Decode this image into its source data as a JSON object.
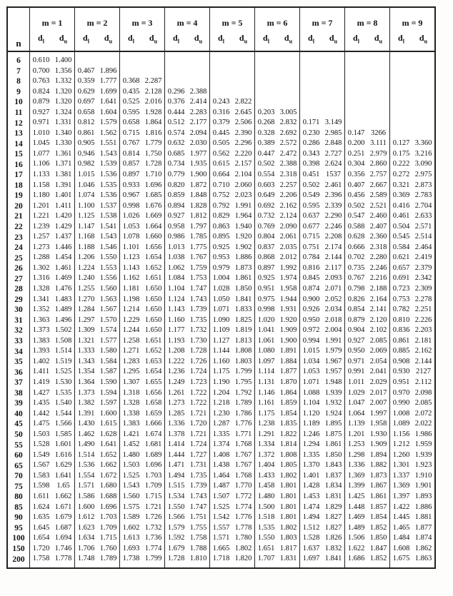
{
  "header": {
    "n_label": "n",
    "d_label": "d",
    "sub_l": "l",
    "sub_u": "u",
    "groups": [
      "m = 1",
      "m = 2",
      "m = 3",
      "m = 4",
      "m = 5",
      "m = 6",
      "m = 7",
      "m = 8",
      "m = 9"
    ]
  },
  "chart_data": {
    "type": "table",
    "title": "Durbin-Watson critical values (d_l and d_u) by sample size n and number of regressors m",
    "columns": [
      "n",
      "m=1 dl",
      "m=1 du",
      "m=2 dl",
      "m=2 du",
      "m=3 dl",
      "m=3 du",
      "m=4 dl",
      "m=4 du",
      "m=5 dl",
      "m=5 du",
      "m=6 dl",
      "m=6 du",
      "m=7 dl",
      "m=7 du",
      "m=8 dl",
      "m=8 du",
      "m=9 dl",
      "m=9 du"
    ]
  },
  "table": {
    "rows": [
      {
        "n": "6",
        "values": [
          "0.610",
          "1.400"
        ]
      },
      {
        "n": "7",
        "values": [
          "0.700",
          "1.356",
          "0.467",
          "1.896"
        ]
      },
      {
        "n": "8",
        "values": [
          "0.763",
          "1.332",
          "0.359",
          "1.777",
          "0.368",
          "2.287"
        ]
      },
      {
        "n": "9",
        "values": [
          "0.824",
          "1.320",
          "0.629",
          "1.699",
          "0.435",
          "2.128",
          "0.296",
          "2.388"
        ]
      },
      {
        "n": "10",
        "values": [
          "0.879",
          "1.320",
          "0.697",
          "1.641",
          "0.525",
          "2.016",
          "0.376",
          "2.414",
          "0.243",
          "2.822"
        ]
      },
      {
        "n": "11",
        "values": [
          "0.927",
          "1.324",
          "0.658",
          "1.604",
          "0.595",
          "1.928",
          "0.444",
          "2.283",
          "0.316",
          "2.645",
          "0.203",
          "3.005"
        ]
      },
      {
        "n": "12",
        "values": [
          "0.971",
          "1.331",
          "0.812",
          "1.579",
          "0.658",
          "1.864",
          "0.512",
          "2.177",
          "0.379",
          "2.506",
          "0.268",
          "2.832",
          "0.171",
          "3.149"
        ]
      },
      {
        "n": "13",
        "values": [
          "1.010",
          "1.340",
          "0.861",
          "1.562",
          "0.715",
          "1.816",
          "0.574",
          "2.094",
          "0.445",
          "2.390",
          "0.328",
          "2.692",
          "0.230",
          "2.985",
          "0.147",
          "3266"
        ]
      },
      {
        "n": "14",
        "values": [
          "1.045",
          "1.330",
          "0.905",
          "1.551",
          "0.767",
          "1.779",
          "0.632",
          "2.030",
          "0.505",
          "2.296",
          "0.389",
          "2.572",
          "0.286",
          "2.848",
          "0.200",
          "3.111",
          "0.127",
          "3.360"
        ]
      },
      {
        "n": "15",
        "values": [
          "1.077",
          "1.361",
          "0.946",
          "1.543",
          "0.814",
          "1.750",
          "0.685",
          "1.977",
          "0.562",
          "2.220",
          "0.447",
          "2.472",
          "0.343",
          "2.727",
          "0.251",
          "2.979",
          "0.175",
          "3.216"
        ]
      },
      {
        "n": "16",
        "values": [
          "1.106",
          "1.371",
          "0.982",
          "1.539",
          "0.857",
          "1.728",
          "0.734",
          "1.935",
          "0.615",
          "2.157",
          "0.502",
          "2.388",
          "0.398",
          "2.624",
          "0.304",
          "2.860",
          "0.222",
          "3.090"
        ]
      },
      {
        "n": "17",
        "values": [
          "1.133",
          "1.381",
          "1.015",
          "1.536",
          "0.897",
          "1.710",
          "0.779",
          "1.900",
          "0.664",
          "2.104",
          "0.554",
          "2.318",
          "0.451",
          "1537",
          "0.356",
          "2.757",
          "0.272",
          "2.975"
        ]
      },
      {
        "n": "18",
        "values": [
          "1.158",
          "1.391",
          "1.046",
          "1.535",
          "0.933",
          "1.696",
          "0.820",
          "1.872",
          "0.710",
          "2.060",
          "0.603",
          "2.257",
          "0.502",
          "2.461",
          "0.407",
          "2.667",
          "0.321",
          "2.873"
        ]
      },
      {
        "n": "19",
        "values": [
          "1.180",
          "1.401",
          "1.074",
          "1.536",
          "0.967",
          "1.685",
          "0.859",
          "1.848",
          "0.752",
          "2.023",
          "0.649",
          "2.206",
          "0.549",
          "2.396",
          "0.456",
          "2.589",
          "0.369",
          "2.783"
        ]
      },
      {
        "n": "20",
        "values": [
          "1.201",
          "1.411",
          "1.100",
          "1.537",
          "0.998",
          "1.676",
          "0.894",
          "1.828",
          "0.792",
          "1.991",
          "0.692",
          "2.162",
          "0.595",
          "2.339",
          "0.502",
          "2.521",
          "0.416",
          "2.704"
        ]
      },
      {
        "n": "21",
        "values": [
          "1.221",
          "1.420",
          "1.125",
          "1.538",
          "1.026",
          "1.669",
          "0.927",
          "1.812",
          "0.829",
          "1.964",
          "0.732",
          "2.124",
          "0.637",
          "2.290",
          "0.547",
          "2.460",
          "0.461",
          "2.633"
        ]
      },
      {
        "n": "22",
        "values": [
          "1.239",
          "1.429",
          "1.147",
          "1.541",
          "1.053",
          "1.664",
          "0.958",
          "1.797",
          "0.863",
          "1.940",
          "0.769",
          "2.090",
          "0.677",
          "2.246",
          "0.588",
          "2.407",
          "0.504",
          "2.571"
        ]
      },
      {
        "n": "23",
        "values": [
          "1.257",
          "1.437",
          "1.168",
          "1.543",
          "1.078",
          "1.660",
          "0.986",
          "1.785",
          "0.895",
          "1.920",
          "0.804",
          "2.061",
          "0.715",
          "2.208",
          "0.628",
          "2.360",
          "0.545",
          "2.514"
        ]
      },
      {
        "n": "24",
        "values": [
          "1.273",
          "1.446",
          "1.188",
          "1.546",
          "1.101",
          "1.656",
          "1.013",
          "1.775",
          "0.925",
          "1.902",
          "0.837",
          "2.035",
          "0.751",
          "2.174",
          "0.666",
          "2.318",
          "0.584",
          "2.464"
        ]
      },
      {
        "n": "25",
        "values": [
          "1.288",
          "1.454",
          "1.206",
          "1.550",
          "1.123",
          "1.654",
          "1.038",
          "1.767",
          "0.953",
          "1.886",
          "0.868",
          "2.012",
          "0.784",
          "2.144",
          "0.702",
          "2.280",
          "0.621",
          "2.419"
        ]
      },
      {
        "n": "26",
        "values": [
          "1.302",
          "1.461",
          "1.224",
          "1.553",
          "1.143",
          "1.652",
          "1.062",
          "1.759",
          "0.979",
          "1.873",
          "0.897",
          "1.992",
          "0.816",
          "2.117",
          "0.735",
          "2.246",
          "0.657",
          "2.379"
        ]
      },
      {
        "n": "27",
        "values": [
          "1.316",
          "1.469",
          "1.240",
          "1.556",
          "1.162",
          "1.651",
          "1.084",
          "1.753",
          "1.004",
          "1.861",
          "0.925",
          "1.974",
          "0.845",
          "2.093",
          "0.767",
          "2.216",
          "0.691",
          "2.342"
        ]
      },
      {
        "n": "28",
        "values": [
          "1.328",
          "1.476",
          "1.255",
          "1.560",
          "1.181",
          "1.650",
          "1.104",
          "1.747",
          "1.028",
          "1.850",
          "0.951",
          "1.958",
          "0.874",
          "2.071",
          "0.798",
          "2.188",
          "0.723",
          "2.309"
        ]
      },
      {
        "n": "29",
        "values": [
          "1.341",
          "1.483",
          "1.270",
          "1.563",
          "1.198",
          "1.650",
          "1.124",
          "1.743",
          "1.050",
          "1.841",
          "0.975",
          "1.944",
          "0.900",
          "2.052",
          "0.826",
          "2.164",
          "0.753",
          "2.278"
        ]
      },
      {
        "n": "30",
        "values": [
          "1.352",
          "1.489",
          "1.284",
          "1.567",
          "1.214",
          "1.650",
          "1.143",
          "1.739",
          "1.071",
          "1.833",
          "0.998",
          "1.931",
          "0.926",
          "2.034",
          "0.854",
          "2.141",
          "0.782",
          "2.251"
        ]
      },
      {
        "n": "31",
        "values": [
          "1.363",
          "1.496",
          "1.297",
          "1.570",
          "1.229",
          "1.650",
          "1.160",
          "1.735",
          "1.090",
          "1.825",
          "1.020",
          "1.920",
          "0.950",
          "2.018",
          "0.879",
          "2.120",
          "0.810",
          "2.226"
        ]
      },
      {
        "n": "32",
        "values": [
          "1.373",
          "1.502",
          "1.309",
          "1.574",
          "1.244",
          "1.650",
          "1.177",
          "1.732",
          "1.109",
          "1.819",
          "1.041",
          "1.909",
          "0.972",
          "2.004",
          "0.904",
          "2.102",
          "0.836",
          "2.203"
        ]
      },
      {
        "n": "33",
        "values": [
          "1.383",
          "1.508",
          "1.321",
          "1.577",
          "1.258",
          "1.651",
          "1.193",
          "1.730",
          "1.127",
          "1.813",
          "1.061",
          "1.900",
          "0.994",
          "1.991",
          "0.927",
          "2.085",
          "0.861",
          "2.181"
        ]
      },
      {
        "n": "34",
        "values": [
          "1.393",
          "1.514",
          "1.333",
          "1.580",
          "1.271",
          "1.652",
          "1.208",
          "1.728",
          "1.144",
          "1.808",
          "1.080",
          "1.891",
          "1.015",
          "1.979",
          "0.950",
          "2.069",
          "0.885",
          "2.162"
        ]
      },
      {
        "n": "35",
        "values": [
          "1.402",
          "1.519",
          "1.343",
          "1.584",
          "1.283",
          "1.653",
          "1.222",
          "1.726",
          "1.160",
          "1.803",
          "1.097",
          "1.884",
          "1.034",
          "1.967",
          "0.971",
          "2.054",
          "0.908",
          "2.144"
        ]
      },
      {
        "n": "36",
        "values": [
          "1.411",
          "1.525",
          "1.354",
          "1.587",
          "1.295",
          "1.654",
          "1.236",
          "1.724",
          "1.175",
          "1.799",
          "1.114",
          "1.877",
          "1.053",
          "1.957",
          "0.991",
          "2.041",
          "0.930",
          "2127"
        ]
      },
      {
        "n": "37",
        "values": [
          "1.419",
          "1.530",
          "1.364",
          "1.590",
          "1.307",
          "1.655",
          "1.249",
          "1.723",
          "1.190",
          "1.795",
          "1.131",
          "1.870",
          "1.071",
          "1.948",
          "1.011",
          "2.029",
          "0.951",
          "2.112"
        ]
      },
      {
        "n": "38",
        "values": [
          "1.427",
          "1.535",
          "1.373",
          "1.594",
          "1.318",
          "1.656",
          "1.261",
          "1.722",
          "1.204",
          "1.792",
          "1.146",
          "1.864",
          "1.088",
          "1.939",
          "1.029",
          "2.017",
          "0.970",
          "2.098"
        ]
      },
      {
        "n": "39",
        "values": [
          "1.435",
          "1.540",
          "1.382",
          "1.597",
          "1.328",
          "1.658",
          "1.273",
          "1.722",
          "1.218",
          "1.789",
          "1.161",
          "1.859",
          "1.104",
          "1.932",
          "1.047",
          "2.007",
          "0.990",
          "2.085"
        ]
      },
      {
        "n": "40",
        "values": [
          "1.442",
          "1.544",
          "1.391",
          "1.600",
          "1.338",
          "1.659",
          "1.285",
          "1.721",
          "1.230",
          "1.786",
          "1.175",
          "1.854",
          "1.120",
          "1.924",
          "1.064",
          "1.997",
          "1.008",
          "2.072"
        ]
      },
      {
        "n": "45",
        "values": [
          "1.475",
          "1.566",
          "1.430",
          "1.615",
          "1.383",
          "1.666",
          "1.336",
          "1.720",
          "1.287",
          "1.776",
          "1.238",
          "1.835",
          "1.189",
          "1.895",
          "1.139",
          "1.958",
          "1.089",
          "2.022"
        ]
      },
      {
        "n": "50",
        "values": [
          "1.503",
          "1.585",
          "1.462",
          "1.628",
          "1.421",
          "1.674",
          "1.378",
          "1.721",
          "1.335",
          "1.771",
          "1.291",
          "1.822",
          "1.246",
          "1.875",
          "1.201",
          "1.930",
          "1.156",
          "1.986"
        ]
      },
      {
        "n": "55",
        "values": [
          "1.528",
          "1.601",
          "1.490",
          "1.641",
          "1.452",
          "1.681",
          "1.414",
          "1.724",
          "1.374",
          "1.768",
          "1.334",
          "1.814",
          "1.294",
          "1.861",
          "1.253",
          "1.909",
          "1.212",
          "1.959"
        ]
      },
      {
        "n": "60",
        "values": [
          "1.549",
          "1.616",
          "1.514",
          "1.652",
          "1.480",
          "1.689",
          "1.444",
          "1.727",
          "1.408",
          "1.767",
          "1.372",
          "1.808",
          "1.335",
          "1.850",
          "1.298",
          "1.894",
          "1.260",
          "1.939"
        ]
      },
      {
        "n": "65",
        "values": [
          "1.567",
          "1.629",
          "1.536",
          "1.662",
          "1.503",
          "1.696",
          "1.471",
          "1.731",
          "1.438",
          "1.767",
          "1.404",
          "1.805",
          "1.370",
          "1.843",
          "1.336",
          "1.882",
          "1.301",
          "1.923"
        ]
      },
      {
        "n": "70",
        "values": [
          "1.583",
          "1.641",
          "1.554",
          "1.672",
          "1.525",
          "1.703",
          "1.494",
          "1.735",
          "1.464",
          "1.768",
          "1.433",
          "1.802",
          "1.401",
          "1.837",
          "1.369",
          "1.873",
          "1.337",
          "1.910"
        ]
      },
      {
        "n": "75",
        "values": [
          "1.598",
          "1.65",
          "1.571",
          "1.680",
          "1.543",
          "1.709",
          "1.515",
          "1.739",
          "1.487",
          "1.770",
          "1.458",
          "1.801",
          "1.428",
          "1.834",
          "1.399",
          "1.867",
          "1.369",
          "1.901"
        ]
      },
      {
        "n": "80",
        "values": [
          "1.611",
          "1.662",
          "1.586",
          "1.688",
          "1.560",
          "1.715",
          "1.534",
          "1.743",
          "1.507",
          "1.772",
          "1.480",
          "1.801",
          "1.453",
          "1.831",
          "1.425",
          "1.861",
          "1.397",
          "1.893"
        ]
      },
      {
        "n": "85",
        "values": [
          "1.624",
          "1.671",
          "1.600",
          "1.696",
          "1.575",
          "1.721",
          "1.550",
          "1.747",
          "1.525",
          "1.774",
          "1.500",
          "1.801",
          "1.474",
          "1.829",
          "1.448",
          "1.857",
          "1.422",
          "1.886"
        ]
      },
      {
        "n": "90",
        "values": [
          "1.635",
          "1.679",
          "1.612",
          "1.703",
          "1.589",
          "1.726",
          "1.566",
          "1.751",
          "1.542",
          "1.776",
          "1.518",
          "1.801",
          "1.494",
          "1.827",
          "1.469",
          "1.854",
          "1.445",
          "1.881"
        ]
      },
      {
        "n": "95",
        "values": [
          "1.645",
          "1.687",
          "1.623",
          "1.709",
          "1.602",
          "1.732",
          "1.579",
          "1.755",
          "1.557",
          "1.778",
          "1.535",
          "1.802",
          "1.512",
          "1.827",
          "1.489",
          "1.852",
          "1.465",
          "1.877"
        ]
      },
      {
        "n": "100",
        "values": [
          "1.654",
          "1.694",
          "1.634",
          "1.715",
          "1.613",
          "1.736",
          "1.592",
          "1.758",
          "1.571",
          "1.780",
          "1.550",
          "1.803",
          "1.528",
          "1.826",
          "1.506",
          "1.850",
          "1.484",
          "1.874"
        ]
      },
      {
        "n": "150",
        "values": [
          "1.720",
          "1.746",
          "1.706",
          "1.760",
          "1.693",
          "1.774",
          "1.679",
          "1.788",
          "1.665",
          "1.802",
          "1.651",
          "1.817",
          "1.637",
          "1.832",
          "1.622",
          "1.847",
          "1.608",
          "1.862"
        ]
      },
      {
        "n": "200",
        "values": [
          "1.758",
          "1.778",
          "1.748",
          "1.789",
          "1.738",
          "1.799",
          "1.728",
          "1.810",
          "1.718",
          "1.820",
          "1.707",
          "1.831",
          "1.697",
          "1.841",
          "1.686",
          "1.852",
          "1.675",
          "1.863"
        ]
      }
    ]
  }
}
